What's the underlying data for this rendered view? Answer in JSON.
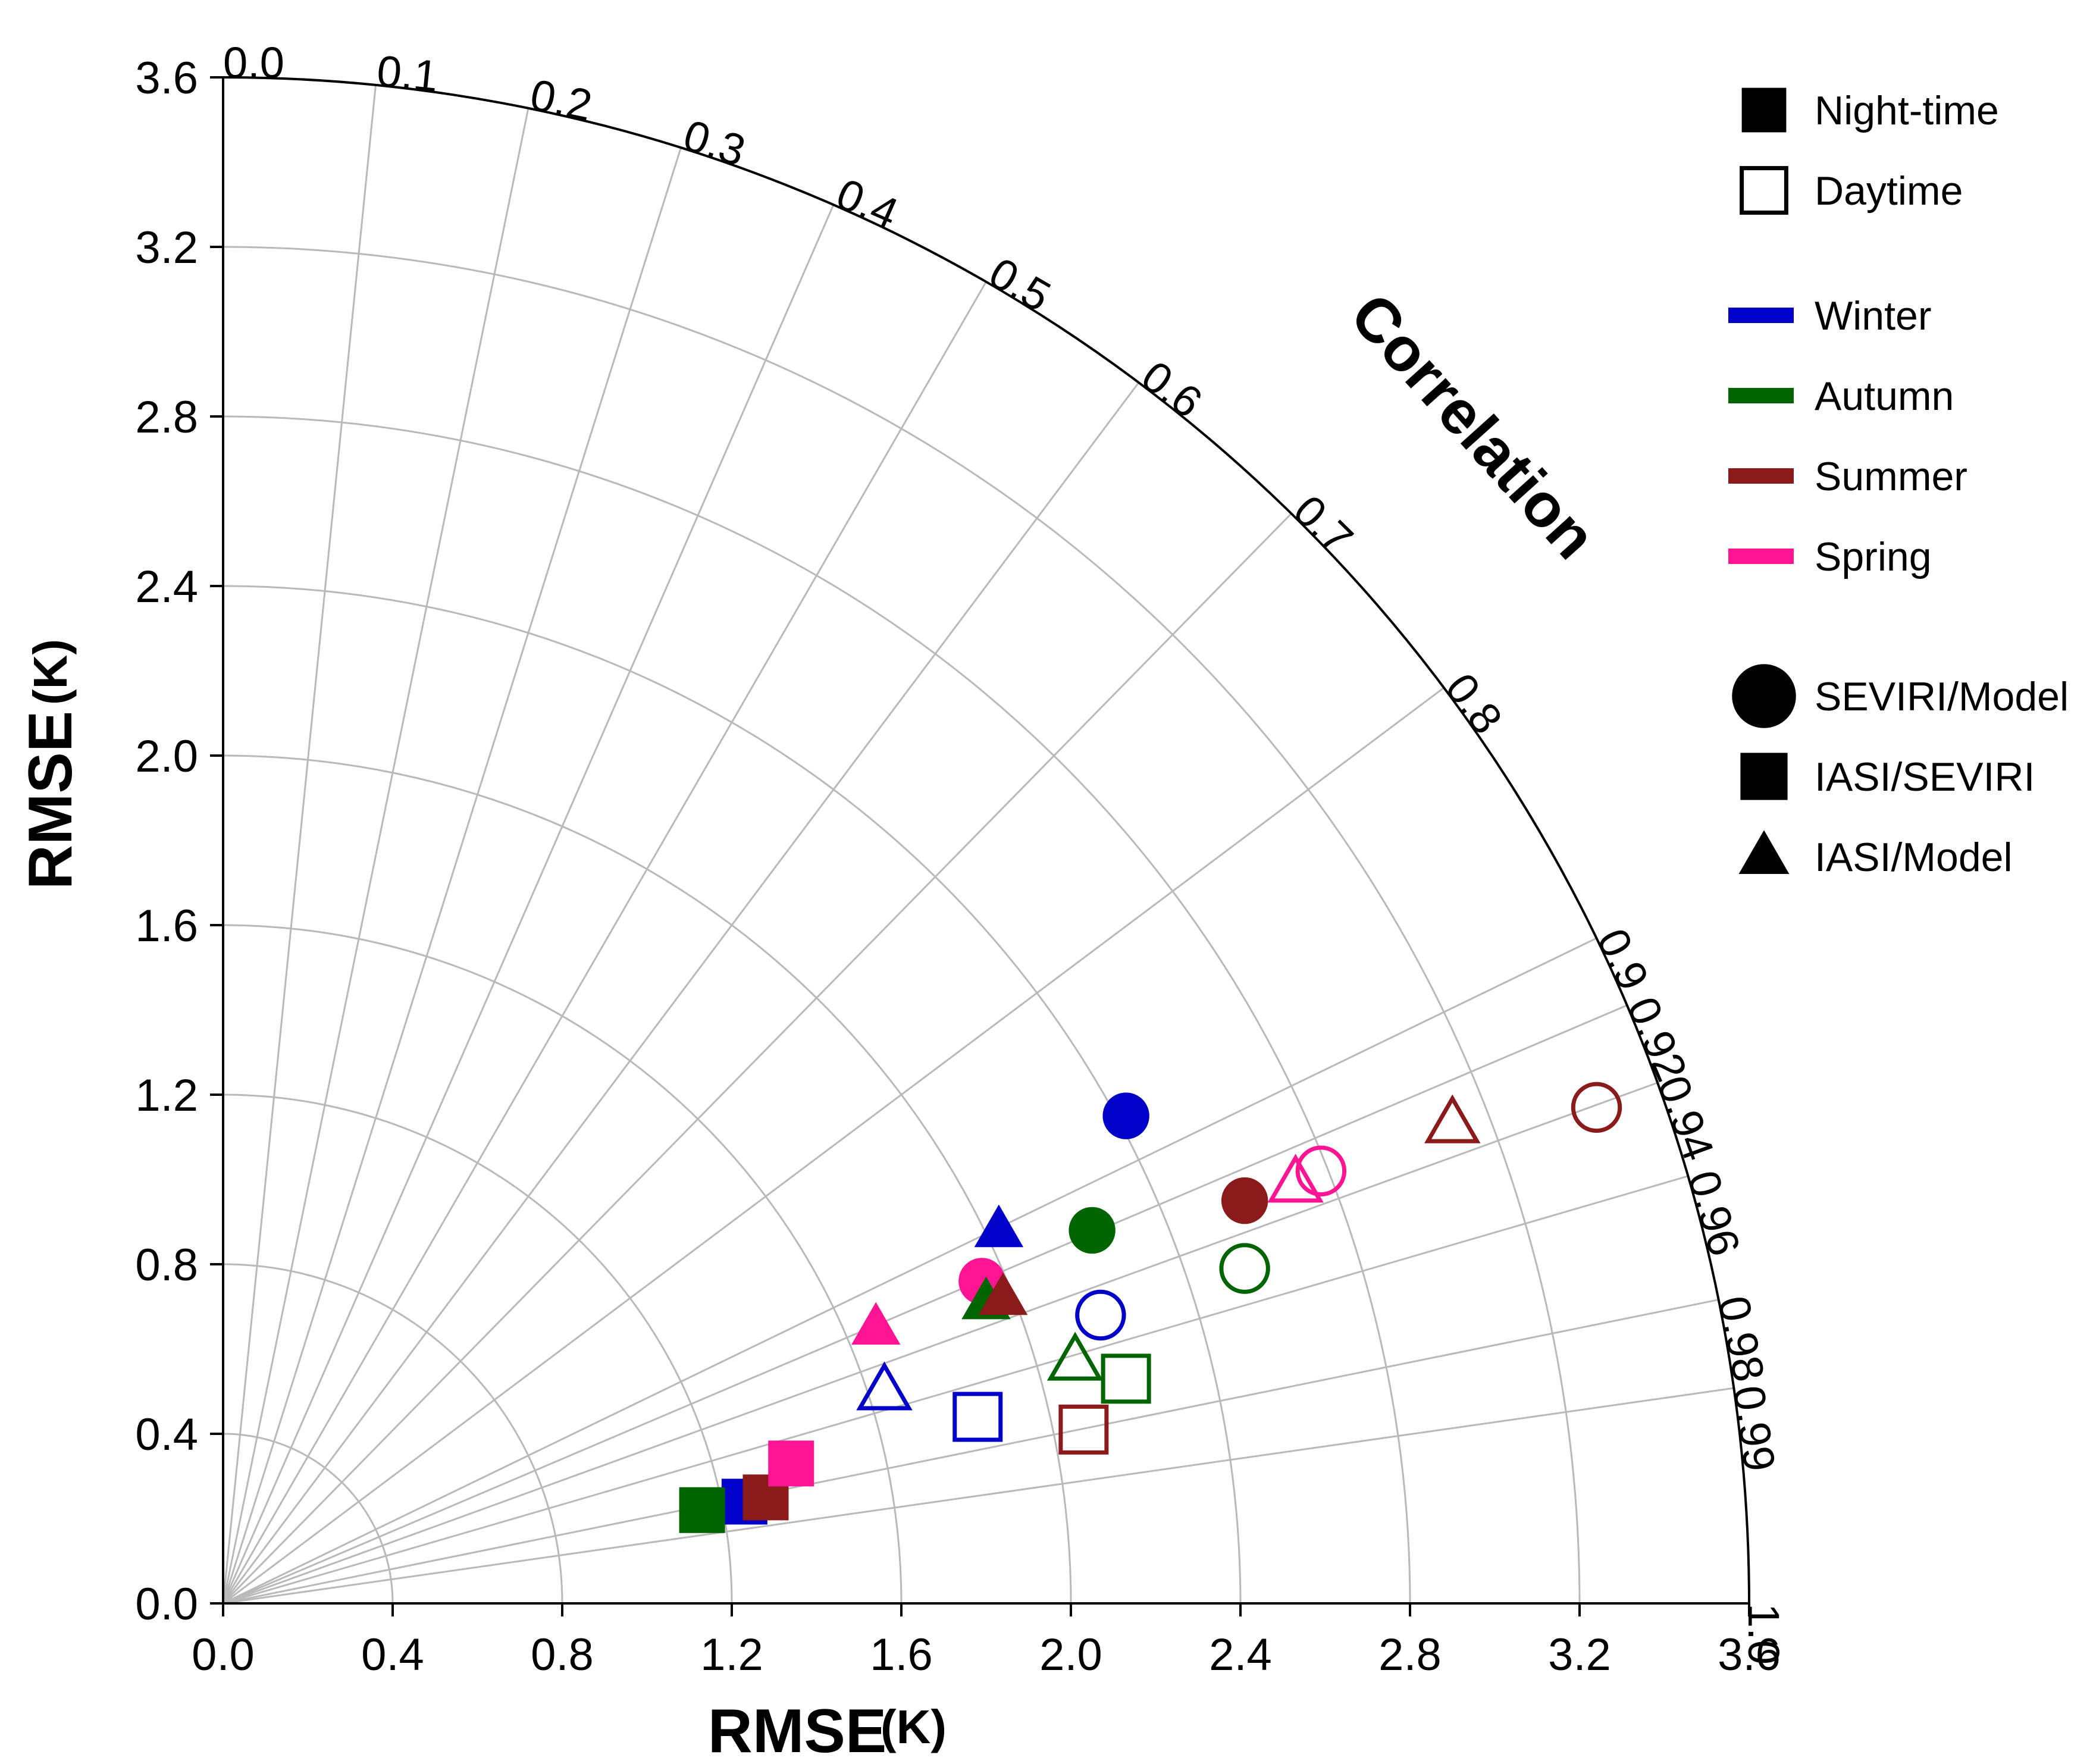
{
  "chart_data": {
    "type": "scatter",
    "subtype": "taylor-diagram",
    "xlabel": "RMSE",
    "ylabel": "RMSE",
    "unit": "(K)",
    "correlation_label": "Correlation",
    "xlim": [
      0,
      3.6
    ],
    "ylim": [
      0,
      3.6
    ],
    "x_ticks": [
      "0.0",
      "0.4",
      "0.8",
      "1.2",
      "1.6",
      "2.0",
      "2.4",
      "2.8",
      "3.2",
      "3.6"
    ],
    "y_ticks": [
      "0.0",
      "0.4",
      "0.8",
      "1.2",
      "1.6",
      "2.0",
      "2.4",
      "2.8",
      "3.2",
      "3.6"
    ],
    "correlation_ticks": [
      "0.0",
      "0.1",
      "0.2",
      "0.3",
      "0.4",
      "0.5",
      "0.6",
      "0.7",
      "0.8",
      "0.9",
      "0.92",
      "0.94",
      "0.96",
      "0.98",
      "0.99",
      "1.0"
    ],
    "correlation_ticks_numeric": [
      0.0,
      0.1,
      0.2,
      0.3,
      0.4,
      0.5,
      0.6,
      0.7,
      0.8,
      0.9,
      0.92,
      0.94,
      0.96,
      0.98,
      0.99,
      1.0
    ],
    "rmse_arcs": [
      0.4,
      0.8,
      1.2,
      1.6,
      2.0,
      2.4,
      2.8,
      3.2
    ],
    "legend": {
      "time": [
        {
          "label": "Night-time",
          "style": "filled"
        },
        {
          "label": "Daytime",
          "style": "open"
        }
      ],
      "season": [
        {
          "label": "Winter",
          "color": "#0000c8"
        },
        {
          "label": "Autumn",
          "color": "#006400"
        },
        {
          "label": "Summer",
          "color": "#8b1a1a"
        },
        {
          "label": "Spring",
          "color": "#ff1493"
        }
      ],
      "pair": [
        {
          "label": "SEVIRI/Model",
          "shape": "circle"
        },
        {
          "label": "IASI/SEVIRI",
          "shape": "square"
        },
        {
          "label": "IASI/Model",
          "shape": "triangle"
        }
      ]
    },
    "points": [
      {
        "season": "Winter",
        "pair": "SEVIRI/Model",
        "time": "Night-time",
        "x": 2.13,
        "y": 1.15
      },
      {
        "season": "Autumn",
        "pair": "SEVIRI/Model",
        "time": "Night-time",
        "x": 2.05,
        "y": 0.88
      },
      {
        "season": "Summer",
        "pair": "SEVIRI/Model",
        "time": "Night-time",
        "x": 2.41,
        "y": 0.95
      },
      {
        "season": "Spring",
        "pair": "SEVIRI/Model",
        "time": "Night-time",
        "x": 1.79,
        "y": 0.76
      },
      {
        "season": "Winter",
        "pair": "SEVIRI/Model",
        "time": "Daytime",
        "x": 2.07,
        "y": 0.68
      },
      {
        "season": "Autumn",
        "pair": "SEVIRI/Model",
        "time": "Daytime",
        "x": 2.41,
        "y": 0.79
      },
      {
        "season": "Summer",
        "pair": "SEVIRI/Model",
        "time": "Daytime",
        "x": 3.24,
        "y": 1.17
      },
      {
        "season": "Spring",
        "pair": "SEVIRI/Model",
        "time": "Daytime",
        "x": 2.59,
        "y": 1.02
      },
      {
        "season": "Winter",
        "pair": "IASI/SEVIRI",
        "time": "Night-time",
        "x": 1.23,
        "y": 0.24
      },
      {
        "season": "Autumn",
        "pair": "IASI/SEVIRI",
        "time": "Night-time",
        "x": 1.13,
        "y": 0.22
      },
      {
        "season": "Summer",
        "pair": "IASI/SEVIRI",
        "time": "Night-time",
        "x": 1.28,
        "y": 0.25
      },
      {
        "season": "Spring",
        "pair": "IASI/SEVIRI",
        "time": "Night-time",
        "x": 1.34,
        "y": 0.33
      },
      {
        "season": "Winter",
        "pair": "IASI/SEVIRI",
        "time": "Daytime",
        "x": 1.78,
        "y": 0.44
      },
      {
        "season": "Autumn",
        "pair": "IASI/SEVIRI",
        "time": "Daytime",
        "x": 2.13,
        "y": 0.53
      },
      {
        "season": "Summer",
        "pair": "IASI/SEVIRI",
        "time": "Daytime",
        "x": 2.03,
        "y": 0.41
      },
      {
        "season": "Winter",
        "pair": "IASI/Model",
        "time": "Night-time",
        "x": 1.83,
        "y": 0.88
      },
      {
        "season": "Autumn",
        "pair": "IASI/Model",
        "time": "Night-time",
        "x": 1.8,
        "y": 0.71
      },
      {
        "season": "Summer",
        "pair": "IASI/Model",
        "time": "Night-time",
        "x": 1.84,
        "y": 0.72
      },
      {
        "season": "Spring",
        "pair": "IASI/Model",
        "time": "Night-time",
        "x": 1.54,
        "y": 0.65
      },
      {
        "season": "Winter",
        "pair": "IASI/Model",
        "time": "Daytime",
        "x": 1.56,
        "y": 0.5
      },
      {
        "season": "Autumn",
        "pair": "IASI/Model",
        "time": "Daytime",
        "x": 2.01,
        "y": 0.57
      },
      {
        "season": "Summer",
        "pair": "IASI/Model",
        "time": "Daytime",
        "x": 2.9,
        "y": 1.13
      },
      {
        "season": "Spring",
        "pair": "IASI/Model",
        "time": "Daytime",
        "x": 2.53,
        "y": 0.99
      }
    ]
  }
}
